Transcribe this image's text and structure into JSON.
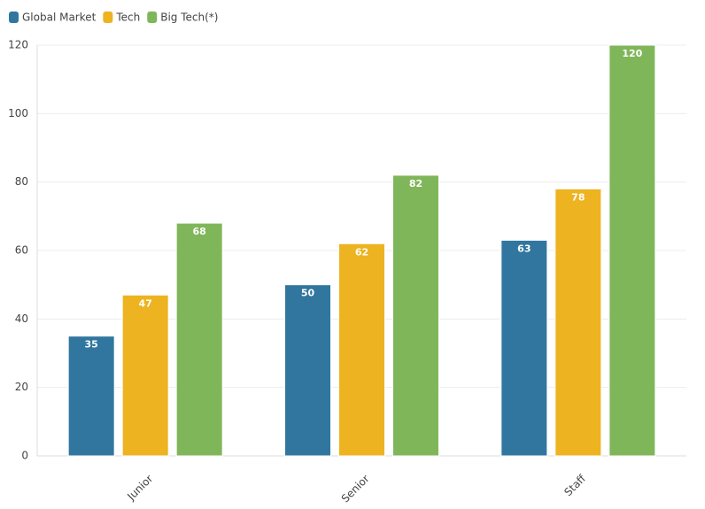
{
  "chart_data": {
    "type": "bar",
    "categories": [
      "Junior",
      "Senior",
      "Staff"
    ],
    "series": [
      {
        "name": "Global Market",
        "color": "#31769f",
        "values": [
          35,
          50,
          63
        ]
      },
      {
        "name": "Tech",
        "color": "#edb320",
        "values": [
          47,
          62,
          78
        ]
      },
      {
        "name": "Big Tech(*)",
        "color": "#80b65a",
        "values": [
          68,
          82,
          120
        ]
      }
    ],
    "ylim": [
      0,
      120
    ],
    "yticks": [
      0,
      20,
      40,
      60,
      80,
      100,
      120
    ],
    "grid": true
  }
}
